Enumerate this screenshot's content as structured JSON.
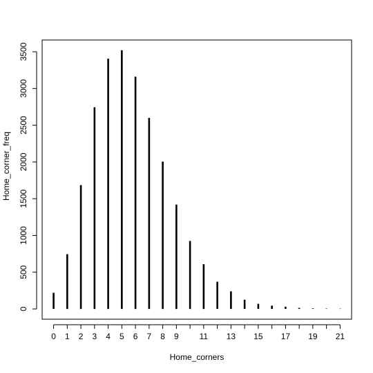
{
  "chart_data": {
    "type": "bar",
    "style": "histogram-lines",
    "xlabel": "Home_corners",
    "ylabel": "Home_corner_freq",
    "x": [
      0,
      1,
      2,
      3,
      4,
      5,
      6,
      7,
      8,
      9,
      10,
      11,
      12,
      13,
      14,
      15,
      16,
      17,
      18,
      19,
      20,
      21
    ],
    "values": [
      220,
      745,
      1685,
      2745,
      3405,
      3520,
      3160,
      2600,
      2005,
      1420,
      925,
      610,
      370,
      240,
      125,
      70,
      45,
      30,
      15,
      8,
      5,
      4
    ],
    "x_tick_labels": [
      "0",
      "1",
      "2",
      "3",
      "4",
      "5",
      "6",
      "7",
      "8",
      "9",
      "11",
      "13",
      "15",
      "17",
      "19",
      "21"
    ],
    "y_tick_labels": [
      "0",
      "500",
      "1000",
      "1500",
      "2000",
      "2500",
      "3000",
      "3500"
    ],
    "xlim": [
      -0.84,
      21.84
    ],
    "ylim": [
      -140,
      3660
    ],
    "grid": false,
    "legend": "none",
    "colors": {
      "bar": "#000000",
      "axis": "#000000",
      "background": "#ffffff"
    }
  }
}
